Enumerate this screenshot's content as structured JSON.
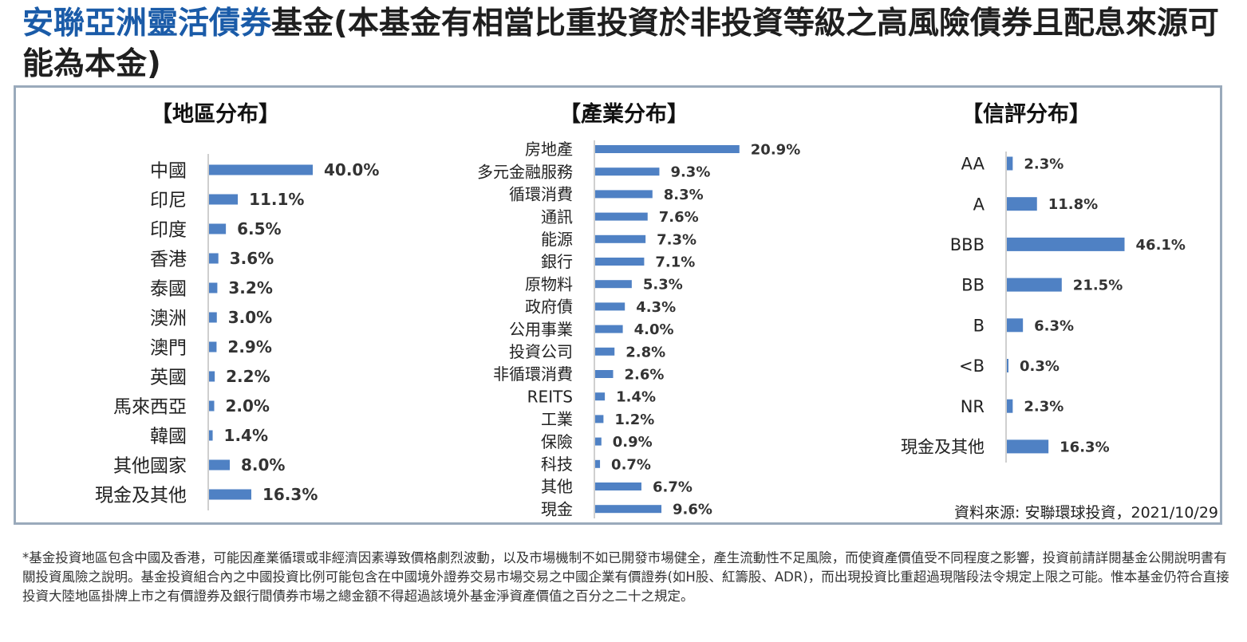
{
  "title": {
    "accent": "安聯亞洲靈活債券",
    "rest": "基金(本基金有相當比重投資於非投資等級之高風險債券且配息來源可能為本金)"
  },
  "source": "資料來源: 安聯環球投資，2021/10/29",
  "footnote": "*基金投資地區包含中國及香港，可能因產業循環或非經濟因素導致價格劇烈波動，以及市場機制不如已開發市場健全，產生流動性不足風險，而使資產價值受不同程度之影響，投資前請詳閱基金公開說明書有關投資風險之說明。基金投資組合內之中國投資比例可能包含在中國境外證券交易市場交易之中國企業有價證券(如H股、紅籌股、ADR)，而出現投資比重超過現階段法令規定上限之可能。惟本基金仍符合直接投資大陸地區掛牌上市之有價證券及銀行間債券市場之總金額不得超過該境外基金淨資產價值之百分之二十之規定。",
  "colors": {
    "bar": "#4f81c4",
    "accent": "#1a5ba8",
    "border": "#9aaabb"
  },
  "chart_data": [
    {
      "type": "bar",
      "orientation": "horizontal",
      "title": "【地區分布】",
      "categories": [
        "中國",
        "印尼",
        "印度",
        "香港",
        "泰國",
        "澳洲",
        "澳門",
        "英國",
        "馬來西亞",
        "韓國",
        "其他國家",
        "現金及其他"
      ],
      "values": [
        40.0,
        11.1,
        6.5,
        3.6,
        3.2,
        3.0,
        2.9,
        2.2,
        2.0,
        1.4,
        8.0,
        16.3
      ],
      "labels": [
        "40.0%",
        "11.1%",
        "6.5%",
        "3.6%",
        "3.2%",
        "3.0%",
        "2.9%",
        "2.2%",
        "2.0%",
        "1.4%",
        "8.0%",
        "16.3%"
      ],
      "unit": "%",
      "grid": false
    },
    {
      "type": "bar",
      "orientation": "horizontal",
      "title": "【產業分布】",
      "categories": [
        "房地產",
        "多元金融服務",
        "循環消費",
        "通訊",
        "能源",
        "銀行",
        "原物料",
        "政府債",
        "公用事業",
        "投資公司",
        "非循環消費",
        "REITS",
        "工業",
        "保險",
        "科技",
        "其他",
        "現金"
      ],
      "values": [
        20.9,
        9.3,
        8.3,
        7.6,
        7.3,
        7.1,
        5.3,
        4.3,
        4.0,
        2.8,
        2.6,
        1.4,
        1.2,
        0.9,
        0.7,
        6.7,
        9.6
      ],
      "labels": [
        "20.9%",
        "9.3%",
        "8.3%",
        "7.6%",
        "7.3%",
        "7.1%",
        "5.3%",
        "4.3%",
        "4.0%",
        "2.8%",
        "2.6%",
        "1.4%",
        "1.2%",
        "0.9%",
        "0.7%",
        "6.7%",
        "9.6%"
      ],
      "unit": "%",
      "grid": false
    },
    {
      "type": "bar",
      "orientation": "horizontal",
      "title": "【信評分布】",
      "categories": [
        "AA",
        "A",
        "BBB",
        "BB",
        "B",
        "<B",
        "NR",
        "現金及其他"
      ],
      "values": [
        2.3,
        11.8,
        46.1,
        21.5,
        6.3,
        0.3,
        2.3,
        16.3
      ],
      "labels": [
        "2.3%",
        "11.8%",
        "46.1%",
        "21.5%",
        "6.3%",
        "0.3%",
        "2.3%",
        "16.3%"
      ],
      "unit": "%",
      "grid": false
    }
  ]
}
